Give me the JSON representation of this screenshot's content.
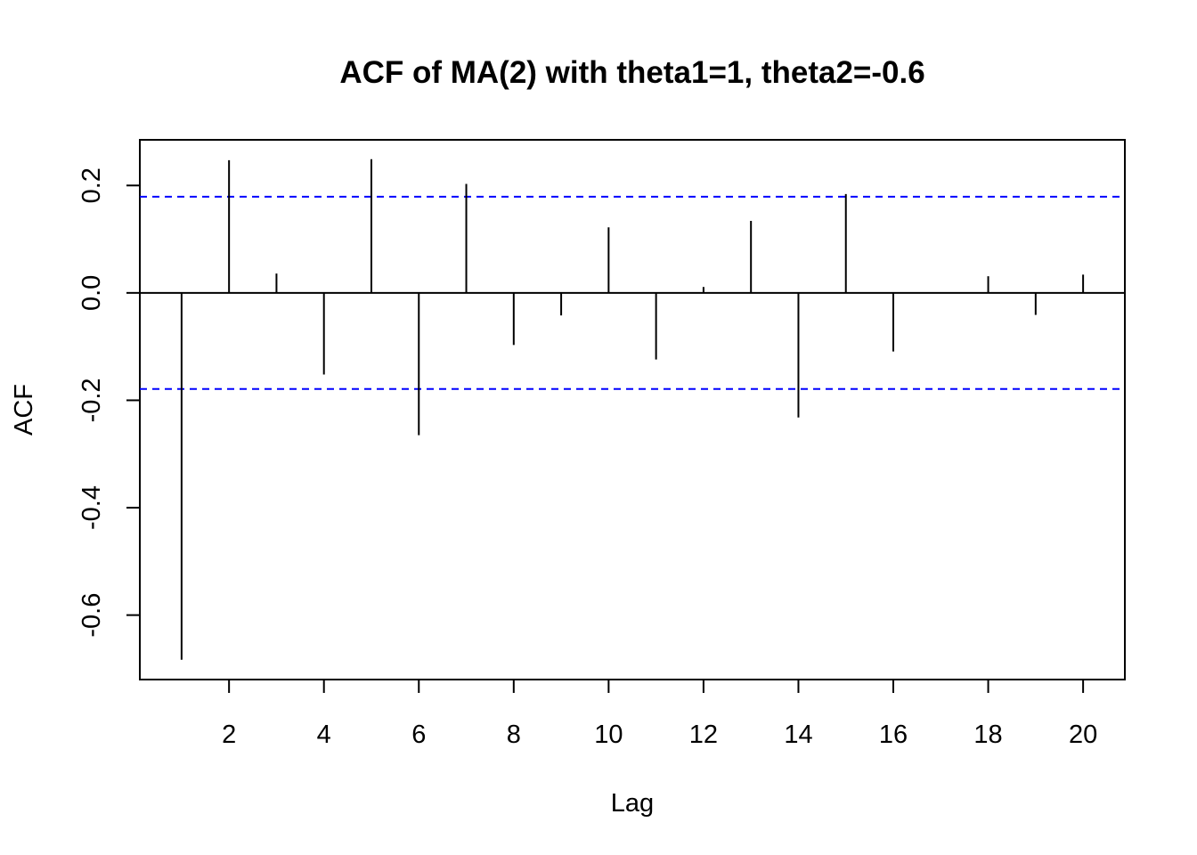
{
  "chart_data": {
    "type": "bar",
    "title": "ACF of MA(2) with theta1=1, theta2=-0.6",
    "xlabel": "Lag",
    "ylabel": "ACF",
    "xlim": [
      0.12,
      20.88
    ],
    "ylim": [
      -0.72,
      0.285
    ],
    "x_ticks": [
      2,
      4,
      6,
      8,
      10,
      12,
      14,
      16,
      18,
      20
    ],
    "x_tick_labels": [
      "2",
      "4",
      "6",
      "8",
      "10",
      "12",
      "14",
      "16",
      "18",
      "20"
    ],
    "y_ticks": [
      -0.6,
      -0.4,
      -0.2,
      0.0,
      0.2
    ],
    "y_tick_labels": [
      "-0.6",
      "-0.4",
      "-0.2",
      "0.0",
      "0.2"
    ],
    "lags": [
      1,
      2,
      3,
      4,
      5,
      6,
      7,
      8,
      9,
      10,
      11,
      12,
      13,
      14,
      15,
      16,
      17,
      18,
      19,
      20
    ],
    "acf": [
      -0.683,
      0.247,
      0.036,
      -0.152,
      0.249,
      -0.265,
      0.203,
      -0.097,
      -0.042,
      0.122,
      -0.124,
      0.011,
      0.134,
      -0.232,
      0.184,
      -0.109,
      0.0,
      0.031,
      -0.041,
      0.034
    ],
    "confidence_bounds": [
      0.179,
      -0.179
    ],
    "bound_color": "#0000FF",
    "bar_color": "#000000",
    "grid": false,
    "legend": "none"
  }
}
